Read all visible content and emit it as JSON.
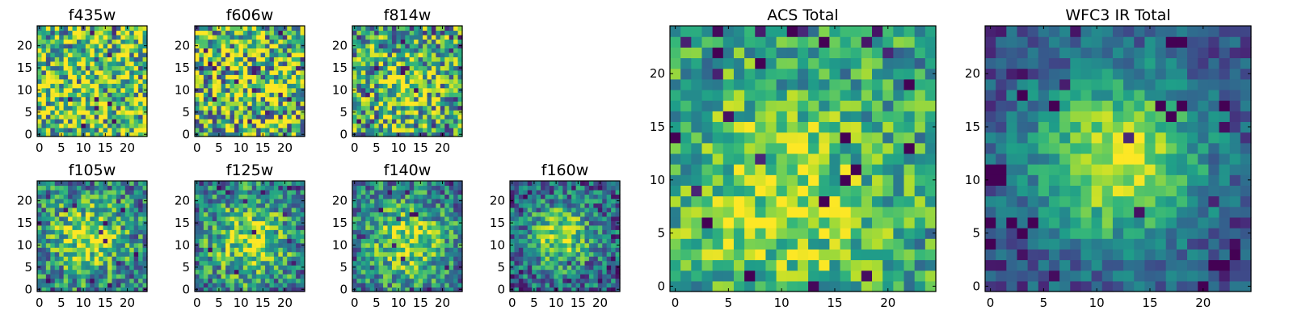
{
  "figure": {
    "colormap": "viridis",
    "background": "#ffffff",
    "axis_color": "#000000"
  },
  "chart_data": [
    {
      "type": "heatmap",
      "title": "f435w",
      "grid_size": 24,
      "xlim": [
        0,
        24
      ],
      "ylim": [
        0,
        24
      ],
      "xticks": [
        "0",
        "5",
        "10",
        "15",
        "20"
      ],
      "yticks": [
        "0",
        "5",
        "10",
        "15",
        "20"
      ],
      "pattern": {
        "kind": "noise",
        "center": [
          12,
          12
        ],
        "sigma": 8,
        "peak": 0,
        "base": 0.72,
        "noise": 0.5,
        "seed": 11
      }
    },
    {
      "type": "heatmap",
      "title": "f606w",
      "grid_size": 24,
      "xlim": [
        0,
        24
      ],
      "ylim": [
        0,
        24
      ],
      "xticks": [
        "0",
        "5",
        "10",
        "15",
        "20"
      ],
      "yticks": [
        "0",
        "5",
        "10",
        "15",
        "20"
      ],
      "pattern": {
        "kind": "noise",
        "center": [
          12,
          12
        ],
        "sigma": 8,
        "peak": 0.05,
        "base": 0.68,
        "noise": 0.55,
        "seed": 23
      }
    },
    {
      "type": "heatmap",
      "title": "f814w",
      "grid_size": 24,
      "xlim": [
        0,
        24
      ],
      "ylim": [
        0,
        24
      ],
      "xticks": [
        "0",
        "5",
        "10",
        "15",
        "20"
      ],
      "yticks": [
        "0",
        "5",
        "10",
        "15",
        "20"
      ],
      "pattern": {
        "kind": "blob",
        "center": [
          11,
          11
        ],
        "sigma": 5,
        "peak": 0.3,
        "base": 0.55,
        "noise": 0.45,
        "seed": 37
      }
    },
    {
      "type": "heatmap",
      "title": "f105w",
      "grid_size": 24,
      "xlim": [
        0,
        24
      ],
      "ylim": [
        0,
        24
      ],
      "xticks": [
        "0",
        "5",
        "10",
        "15",
        "20"
      ],
      "yticks": [
        "0",
        "5",
        "10",
        "15",
        "20"
      ],
      "pattern": {
        "kind": "blob",
        "center": [
          11,
          12
        ],
        "sigma": 6,
        "peak": 0.45,
        "base": 0.42,
        "noise": 0.35,
        "seed": 41
      }
    },
    {
      "type": "heatmap",
      "title": "f125w",
      "grid_size": 24,
      "xlim": [
        0,
        24
      ],
      "ylim": [
        0,
        24
      ],
      "xticks": [
        "0",
        "5",
        "10",
        "15",
        "20"
      ],
      "yticks": [
        "0",
        "5",
        "10",
        "15",
        "20"
      ],
      "pattern": {
        "kind": "blob",
        "center": [
          12,
          11
        ],
        "sigma": 6,
        "peak": 0.45,
        "base": 0.42,
        "noise": 0.35,
        "seed": 53
      }
    },
    {
      "type": "heatmap",
      "title": "f140w",
      "grid_size": 24,
      "xlim": [
        0,
        24
      ],
      "ylim": [
        0,
        24
      ],
      "xticks": [
        "0",
        "5",
        "10",
        "15",
        "20"
      ],
      "yticks": [
        "0",
        "5",
        "10",
        "15",
        "20"
      ],
      "pattern": {
        "kind": "blob",
        "center": [
          12,
          11
        ],
        "sigma": 6,
        "peak": 0.45,
        "base": 0.42,
        "noise": 0.32,
        "seed": 67
      }
    },
    {
      "type": "heatmap",
      "title": "f160w",
      "grid_size": 24,
      "xlim": [
        0,
        24
      ],
      "ylim": [
        0,
        24
      ],
      "xticks": [
        "0",
        "5",
        "10",
        "15",
        "20"
      ],
      "yticks": [
        "0",
        "5",
        "10",
        "15",
        "20"
      ],
      "pattern": {
        "kind": "blob",
        "center": [
          11,
          12
        ],
        "sigma": 5,
        "peak": 0.55,
        "base": 0.32,
        "noise": 0.32,
        "seed": 79
      }
    },
    {
      "type": "heatmap",
      "title": "ACS Total",
      "grid_size": 24,
      "xlim": [
        0,
        24
      ],
      "ylim": [
        0,
        24
      ],
      "xticks": [
        "0",
        "5",
        "10",
        "15",
        "20"
      ],
      "yticks": [
        "0",
        "5",
        "10",
        "15",
        "20"
      ],
      "pattern": {
        "kind": "blob",
        "center": [
          10,
          8
        ],
        "sigma": 7,
        "peak": 0.3,
        "base": 0.55,
        "noise": 0.28,
        "seed": 97,
        "dark_cells": [
          [
            7,
            1
          ],
          [
            3,
            6
          ],
          [
            14,
            8
          ],
          [
            16,
            10
          ],
          [
            17,
            11
          ],
          [
            22,
            13
          ],
          [
            16,
            14
          ],
          [
            4,
            22
          ],
          [
            8,
            21
          ],
          [
            14,
            23
          ],
          [
            11,
            24
          ],
          [
            22,
            19
          ],
          [
            0,
            14
          ]
        ]
      }
    },
    {
      "type": "heatmap",
      "title": "WFC3 IR Total",
      "grid_size": 24,
      "xlim": [
        0,
        24
      ],
      "ylim": [
        0,
        24
      ],
      "xticks": [
        "0",
        "5",
        "10",
        "15",
        "20"
      ],
      "yticks": [
        "0",
        "5",
        "10",
        "15",
        "20"
      ],
      "pattern": {
        "kind": "blob",
        "center": [
          12,
          12
        ],
        "sigma": 6,
        "peak": 0.7,
        "base": 0.22,
        "noise": 0.18,
        "seed": 113,
        "dark_cells": [
          [
            20,
            0
          ],
          [
            0,
            10
          ],
          [
            0,
            11
          ],
          [
            1,
            10
          ],
          [
            1,
            11
          ],
          [
            0,
            4
          ],
          [
            2,
            6
          ],
          [
            3,
            5
          ],
          [
            17,
            16
          ],
          [
            16,
            17
          ],
          [
            18,
            17
          ],
          [
            3,
            18
          ],
          [
            6,
            17
          ],
          [
            22,
            17
          ],
          [
            18,
            23
          ],
          [
            17,
            23
          ],
          [
            21,
            2
          ],
          [
            22,
            2
          ],
          [
            23,
            3
          ],
          [
            0,
            6
          ],
          [
            4,
            6
          ]
        ]
      }
    }
  ]
}
